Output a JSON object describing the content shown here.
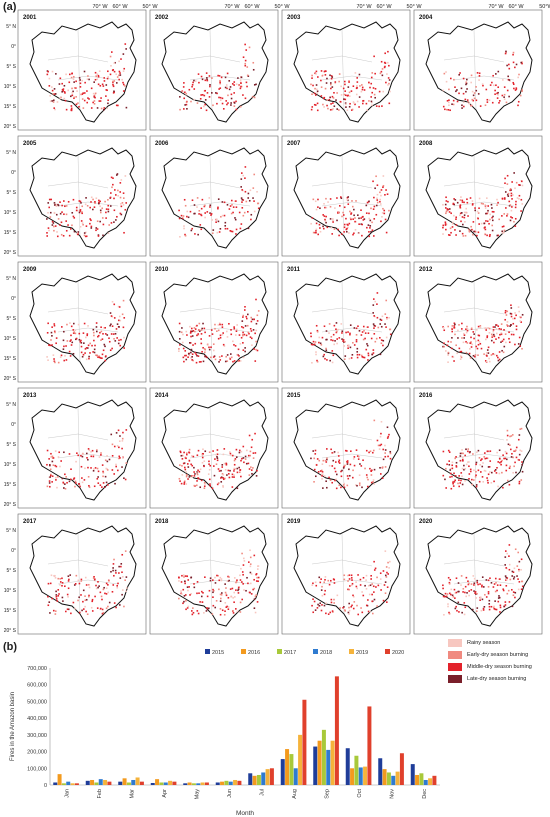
{
  "panel_a_label": "(a)",
  "panel_b_label": "(b)",
  "longitude_labels": [
    "70° W",
    "60° W",
    "50° W",
    "50°W"
  ],
  "latitude_labels": [
    "5° N",
    "0°",
    "5° S",
    "10° S",
    "15° S",
    "20° S"
  ],
  "years": [
    "2001",
    "2002",
    "2003",
    "2004",
    "2005",
    "2006",
    "2007",
    "2008",
    "2009",
    "2010",
    "2011",
    "2012",
    "2013",
    "2014",
    "2015",
    "2016",
    "2017",
    "2018",
    "2019",
    "2020"
  ],
  "season_legend": [
    {
      "label": "Rainy season",
      "color": "#f7c7c0"
    },
    {
      "label": "Early-dry season burning",
      "color": "#f08a80"
    },
    {
      "label": "Middle-dry season burning",
      "color": "#e3222b"
    },
    {
      "label": "Late-dry season burning",
      "color": "#7a1f2a"
    }
  ],
  "chart_data": {
    "type": "bar",
    "xlabel": "Month",
    "ylabel": "Fires in the Amazon basin",
    "ylim": [
      0,
      700000
    ],
    "yticks": [
      "0",
      "100,000",
      "200,000",
      "300,000",
      "400,000",
      "500,000",
      "600,000",
      "700,000"
    ],
    "categories": [
      "Jan",
      "Feb",
      "Mar",
      "Apr",
      "May",
      "Jun",
      "Jul",
      "Aug",
      "Sep",
      "Oct",
      "Nov",
      "Dec"
    ],
    "series": [
      {
        "name": "2015",
        "color": "#1f3d99",
        "values": [
          15000,
          25000,
          20000,
          12000,
          10000,
          15000,
          70000,
          155000,
          230000,
          220000,
          160000,
          125000
        ]
      },
      {
        "name": "2016",
        "color": "#f39a1e",
        "values": [
          65000,
          30000,
          40000,
          35000,
          15000,
          20000,
          55000,
          215000,
          265000,
          100000,
          95000,
          60000
        ]
      },
      {
        "name": "2017",
        "color": "#a8c93a",
        "values": [
          10000,
          15000,
          15000,
          15000,
          10000,
          25000,
          60000,
          185000,
          330000,
          175000,
          75000,
          70000
        ]
      },
      {
        "name": "2018",
        "color": "#2f7bd0",
        "values": [
          20000,
          35000,
          30000,
          15000,
          10000,
          20000,
          75000,
          100000,
          210000,
          105000,
          55000,
          30000
        ]
      },
      {
        "name": "2019",
        "color": "#f5b33b",
        "values": [
          10000,
          30000,
          45000,
          25000,
          15000,
          30000,
          95000,
          300000,
          265000,
          110000,
          80000,
          40000
        ]
      },
      {
        "name": "2020",
        "color": "#e0402c",
        "values": [
          10000,
          20000,
          20000,
          20000,
          15000,
          25000,
          100000,
          510000,
          650000,
          470000,
          190000,
          55000
        ]
      }
    ]
  }
}
